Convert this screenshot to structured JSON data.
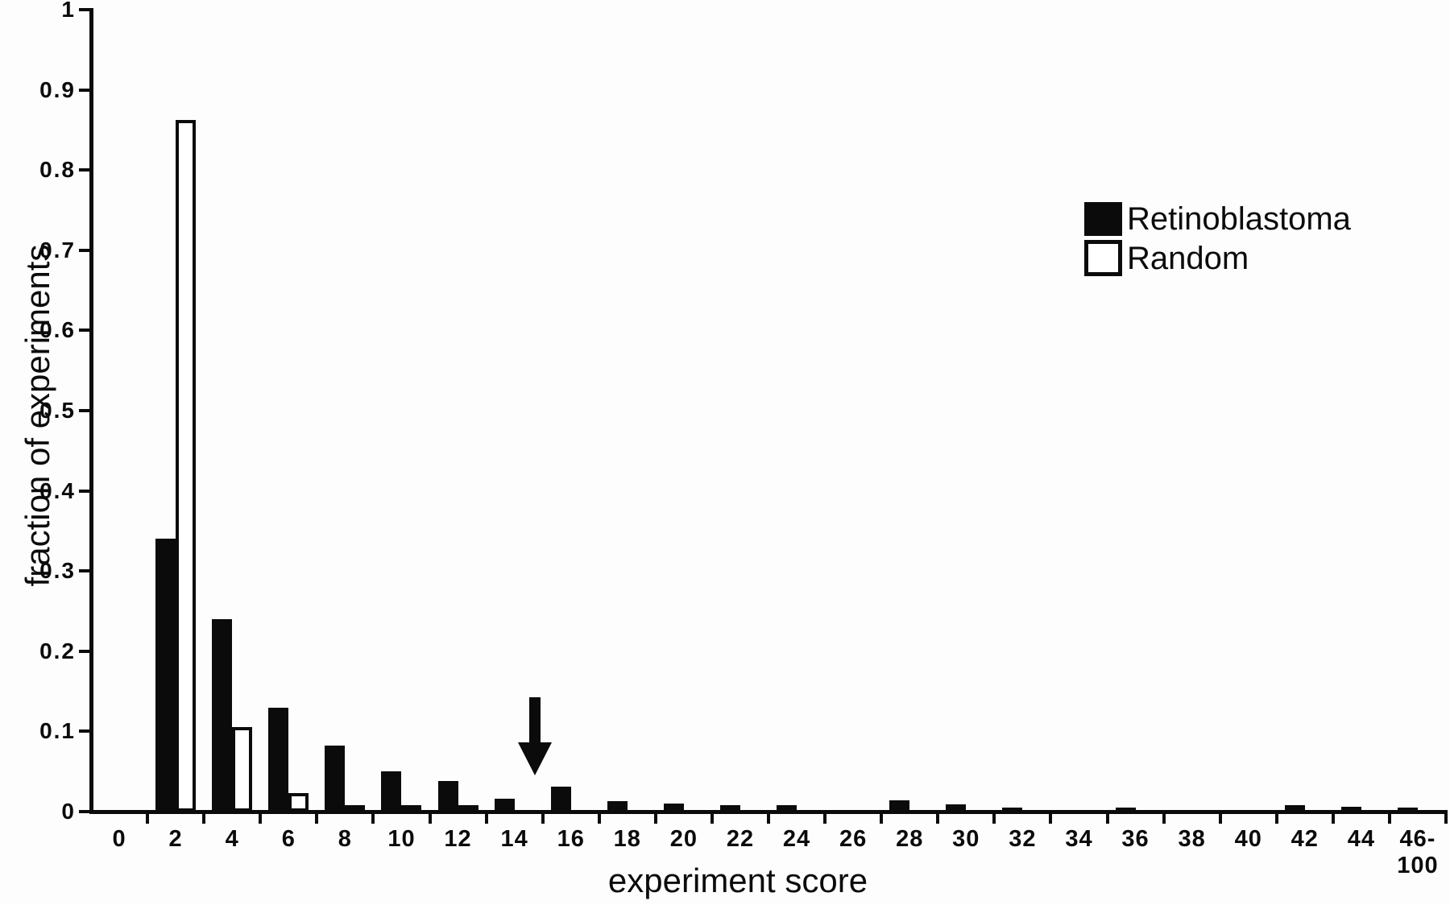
{
  "figure": {
    "background_color": "#fdfdfd",
    "ink_color": "#0b0b0b"
  },
  "chart_data": {
    "type": "bar",
    "title": "",
    "xlabel": "experiment score",
    "ylabel": "fraction of experiments",
    "categories": [
      "0",
      "2",
      "4",
      "6",
      "8",
      "10",
      "12",
      "14",
      "16",
      "18",
      "20",
      "22",
      "24",
      "26",
      "28",
      "30",
      "32",
      "34",
      "36",
      "38",
      "40",
      "42",
      "44",
      "46-100"
    ],
    "xtick_display_labels": [
      "0",
      "2",
      "4",
      "6",
      "8",
      "10",
      "12",
      "14",
      "16",
      "18",
      "20",
      "22",
      "24",
      "26",
      "28",
      "30",
      "32",
      "34",
      "36",
      "38",
      "40",
      "42",
      "44",
      "46-\n100"
    ],
    "series": [
      {
        "name": "Retinoblastoma",
        "swatch": "filled-black",
        "values": [
          0,
          0.34,
          0.24,
          0.13,
          0.082,
          0.05,
          0.038,
          0.016,
          0.031,
          0.013,
          0.01,
          0.008,
          0.008,
          0,
          0.014,
          0.009,
          0.005,
          0,
          0.005,
          0,
          0,
          0.008,
          0.006,
          0.005
        ]
      },
      {
        "name": "Random",
        "swatch": "open-white",
        "values": [
          0,
          0.862,
          0.105,
          0.023,
          0.005,
          0.004,
          0.002,
          0,
          0,
          0,
          0,
          0,
          0,
          0,
          0,
          0,
          0,
          0,
          0,
          0,
          0,
          0,
          0,
          0
        ]
      }
    ],
    "ylim": [
      0,
      1
    ],
    "ytick_labels": [
      "0",
      "0.1",
      "0.2",
      "0.3",
      "0.4",
      "0.5",
      "0.6",
      "0.7",
      "0.8",
      "0.9",
      "1"
    ],
    "grid": false,
    "legend_position": "upper-right",
    "annotations": [
      {
        "type": "down-arrow",
        "between_scores": [
          14,
          16
        ],
        "points_at_category_boundary": "14|16"
      }
    ]
  }
}
